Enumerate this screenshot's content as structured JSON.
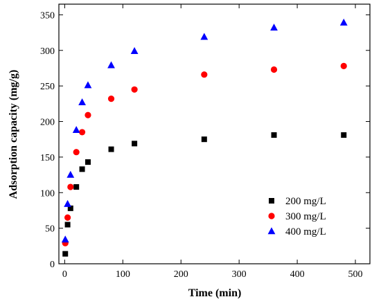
{
  "chart_data": {
    "type": "scatter",
    "title": "",
    "xlabel": "Time (min)",
    "ylabel": "Adsorption capacity (mg/g)",
    "xlim": [
      -10,
      525
    ],
    "ylim": [
      0,
      365
    ],
    "xticks": [
      0,
      100,
      200,
      300,
      400,
      500
    ],
    "yticks": [
      0,
      50,
      100,
      150,
      200,
      250,
      300,
      350
    ],
    "grid": false,
    "legend_position": "lower-right",
    "series": [
      {
        "name": "200 mg/L",
        "marker": "square",
        "color": "#000000",
        "x": [
          1,
          5,
          10,
          20,
          30,
          40,
          80,
          120,
          240,
          360,
          480
        ],
        "y": [
          14,
          55,
          78,
          108,
          133,
          143,
          161,
          169,
          175,
          181,
          181
        ]
      },
      {
        "name": "300 mg/L",
        "marker": "circle",
        "color": "#ff0000",
        "x": [
          1,
          5,
          10,
          20,
          30,
          40,
          80,
          120,
          240,
          360,
          480
        ],
        "y": [
          29,
          65,
          108,
          157,
          185,
          209,
          232,
          245,
          266,
          273,
          278
        ]
      },
      {
        "name": "400 mg/L",
        "marker": "triangle",
        "color": "#0000ff",
        "x": [
          1,
          5,
          10,
          20,
          30,
          40,
          80,
          120,
          240,
          360,
          480
        ],
        "y": [
          34,
          84,
          125,
          188,
          227,
          251,
          279,
          299,
          319,
          332,
          339
        ]
      }
    ]
  }
}
